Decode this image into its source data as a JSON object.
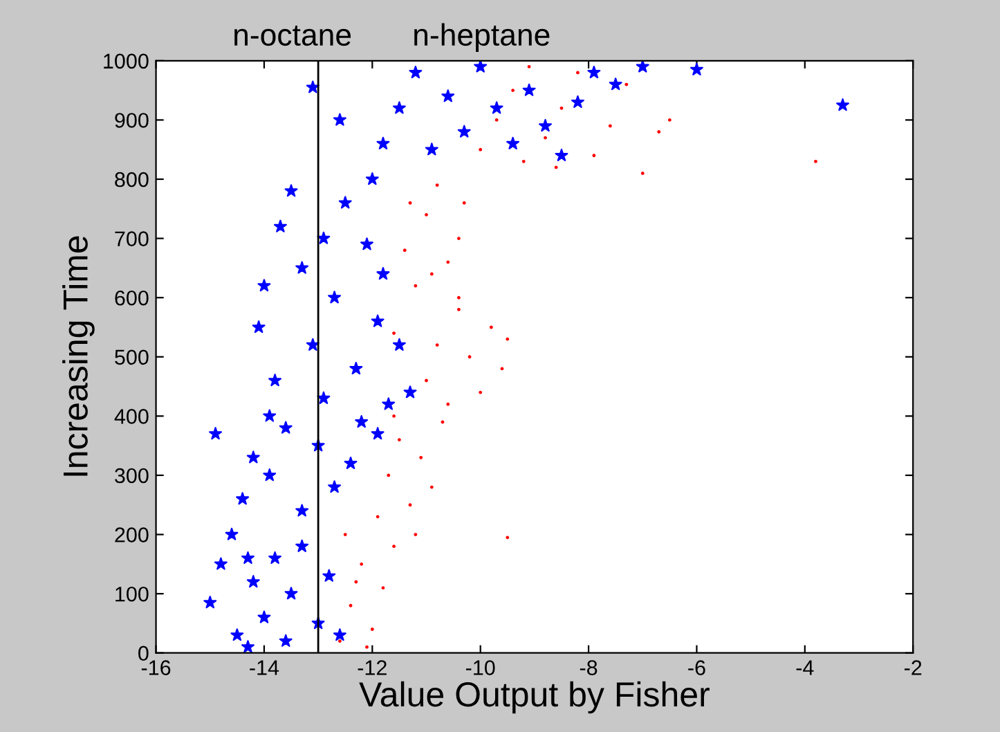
{
  "chart_data": {
    "type": "scatter",
    "xlabel": "Value Output by Fisher",
    "ylabel": "Increasing Time",
    "xlim": [
      -16,
      -2
    ],
    "xticks": [
      -16,
      -14,
      -12,
      -10,
      -8,
      -6,
      -4,
      -2
    ],
    "ylim": [
      0,
      1000
    ],
    "yticks": [
      0,
      100,
      200,
      300,
      400,
      500,
      600,
      700,
      800,
      900,
      1000
    ],
    "grid": false,
    "annotations": [
      "n-octane",
      "n-heptane"
    ],
    "ref_lines": [
      {
        "axis": "x",
        "value": -13,
        "color": "#000000"
      }
    ],
    "series": [
      {
        "color": "#0000ff",
        "marker": "star",
        "x": [
          -14.9,
          -15.0,
          -14.8,
          -14.6,
          -14.5,
          -14.3,
          -14.2,
          -14.0,
          -13.8,
          -13.6,
          -13.5,
          -13.3,
          -13.0,
          -12.8,
          -14.4,
          -14.2,
          -13.9,
          -13.6,
          -13.3,
          -13.0,
          -12.7,
          -12.4,
          -12.2,
          -11.9,
          -14.0,
          -14.1,
          -13.8,
          -13.7,
          -13.5,
          -13.3,
          -13.1,
          -12.9,
          -12.7,
          -12.5,
          -12.3,
          -12.1,
          -11.9,
          -11.7,
          -11.5,
          -11.3,
          -12.0,
          -11.8,
          -11.5,
          -11.2,
          -10.9,
          -10.6,
          -10.3,
          -10.0,
          -9.7,
          -9.4,
          -9.1,
          -8.8,
          -8.5,
          -8.2,
          -7.9,
          -7.5,
          -7.0,
          -6.0,
          -3.3,
          -13.1,
          -12.6,
          -13.9,
          -12.9,
          -11.8,
          -12.6,
          -14.3
        ],
        "values": [
          370,
          85,
          150,
          200,
          30,
          10,
          120,
          60,
          160,
          20,
          100,
          180,
          50,
          130,
          260,
          330,
          300,
          380,
          240,
          350,
          280,
          320,
          390,
          370,
          620,
          550,
          460,
          720,
          780,
          650,
          520,
          430,
          600,
          760,
          480,
          690,
          560,
          420,
          520,
          440,
          800,
          860,
          920,
          980,
          850,
          940,
          880,
          990,
          920,
          860,
          950,
          890,
          840,
          930,
          980,
          960,
          990,
          985,
          925,
          955,
          30,
          400,
          700,
          640,
          900,
          160
        ]
      },
      {
        "color": "#ff0000",
        "marker": "circle",
        "x": [
          -12.6,
          -12.4,
          -12.2,
          -12.0,
          -11.8,
          -11.6,
          -12.5,
          -12.1,
          -11.9,
          -11.7,
          -11.5,
          -11.3,
          -11.1,
          -10.9,
          -10.7,
          -11.6,
          -11.2,
          -11.0,
          -10.8,
          -10.6,
          -10.4,
          -10.2,
          -10.0,
          -9.8,
          -9.6,
          -9.5,
          -10.4,
          -11.2,
          -11.4,
          -11.0,
          -10.8,
          -10.6,
          -10.4,
          -11.3,
          -10.9,
          -9.5,
          -10.0,
          -9.7,
          -9.4,
          -9.1,
          -8.8,
          -8.5,
          -8.2,
          -7.9,
          -7.6,
          -7.3,
          -7.0,
          -6.7,
          -6.5,
          -8.6,
          -9.2,
          -3.8,
          -12.3,
          -11.6,
          -10.3
        ],
        "values": [
          20,
          80,
          150,
          40,
          110,
          180,
          200,
          10,
          230,
          300,
          360,
          250,
          330,
          280,
          390,
          400,
          200,
          460,
          520,
          420,
          580,
          500,
          440,
          550,
          480,
          530,
          600,
          620,
          680,
          740,
          790,
          660,
          700,
          760,
          640,
          195,
          850,
          900,
          950,
          990,
          870,
          920,
          980,
          840,
          890,
          960,
          810,
          880,
          900,
          820,
          830,
          830,
          120,
          540,
          760
        ]
      }
    ]
  }
}
